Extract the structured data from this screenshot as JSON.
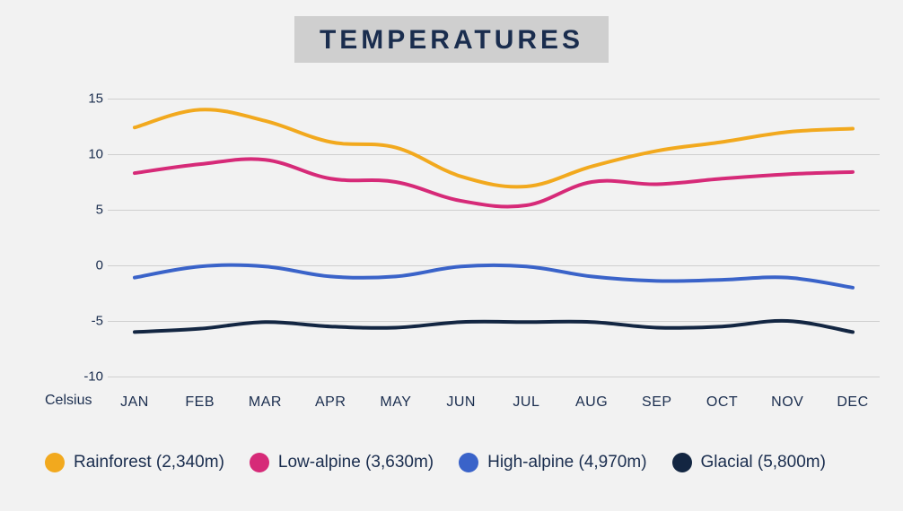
{
  "title": "TEMPERATURES",
  "unit_label": "Celsius",
  "chart": {
    "type": "line",
    "background_color": "#f2f2f2",
    "title_bg": "#cfcfcf",
    "title_color": "#1a2d4e",
    "title_fontsize": 30,
    "title_letter_spacing": 4,
    "label_color": "#1a2d4e",
    "label_fontsize": 16,
    "grid_color": "#cfcfcf",
    "line_width": 4,
    "ylim": [
      -10,
      15
    ],
    "ytick_step": 5,
    "yticks": [
      15,
      10,
      5,
      0,
      -5,
      -10
    ],
    "categories": [
      "JAN",
      "FEB",
      "MAR",
      "APR",
      "MAY",
      "JUN",
      "JUL",
      "AUG",
      "SEP",
      "OCT",
      "NOV",
      "DEC"
    ],
    "series": [
      {
        "name": "Rainforest (2,340m)",
        "color": "#f2a91e",
        "values": [
          12.4,
          14.0,
          13.0,
          11.1,
          10.6,
          8.0,
          7.1,
          8.9,
          10.3,
          11.1,
          12.0,
          12.3
        ]
      },
      {
        "name": "Low-alpine (3,630m)",
        "color": "#d62a78",
        "values": [
          8.3,
          9.1,
          9.5,
          7.8,
          7.5,
          5.8,
          5.4,
          7.5,
          7.3,
          7.8,
          8.2,
          8.4
        ]
      },
      {
        "name": "High-alpine (4,970m)",
        "color": "#3a63c9",
        "values": [
          -1.1,
          -0.1,
          -0.1,
          -1.0,
          -1.0,
          -0.1,
          -0.1,
          -1.0,
          -1.4,
          -1.3,
          -1.1,
          -2.0
        ]
      },
      {
        "name": "Glacial (5,800m)",
        "color": "#132642",
        "values": [
          -6.0,
          -5.7,
          -5.1,
          -5.5,
          -5.6,
          -5.1,
          -5.1,
          -5.1,
          -5.6,
          -5.5,
          -5.0,
          -6.0
        ]
      }
    ]
  }
}
